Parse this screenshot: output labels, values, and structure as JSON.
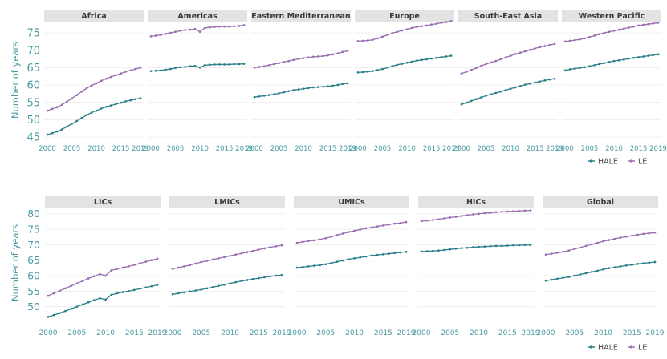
{
  "chart_data": {
    "type": "line",
    "ylabel": "Number of years",
    "colors": {
      "HALE": "#2b7f8a",
      "LE": "#9a6eb0",
      "title_band": "#e3e3e3",
      "tick_text": "#4a9aa0"
    },
    "legend": {
      "placement": "below-right",
      "entries": [
        {
          "key": "HALE",
          "label": "HALE"
        },
        {
          "key": "LE",
          "label": "LE"
        }
      ]
    },
    "x": [
      2000,
      2001,
      2002,
      2003,
      2004,
      2005,
      2006,
      2007,
      2008,
      2009,
      2010,
      2011,
      2012,
      2013,
      2014,
      2015,
      2016,
      2017,
      2018,
      2019
    ],
    "x_tick_labels": [
      "2000",
      "2005",
      "2010",
      "2015",
      "2019"
    ],
    "rows": [
      {
        "ylim": [
          45,
          78
        ],
        "y_ticks": [
          "45",
          "50",
          "55",
          "60",
          "65",
          "70",
          "75"
        ],
        "panels": [
          {
            "title": "Africa",
            "series": [
              {
                "name": "HALE",
                "values": [
                  45.7,
                  46.1,
                  46.6,
                  47.2,
                  48.0,
                  48.8,
                  49.6,
                  50.5,
                  51.3,
                  52.0,
                  52.6,
                  53.2,
                  53.7,
                  54.1,
                  54.5,
                  54.9,
                  55.3,
                  55.6,
                  55.9,
                  56.2
                ]
              },
              {
                "name": "LE",
                "values": [
                  52.6,
                  53.1,
                  53.6,
                  54.3,
                  55.2,
                  56.1,
                  57.1,
                  58.1,
                  59.0,
                  59.8,
                  60.5,
                  61.2,
                  61.8,
                  62.3,
                  62.8,
                  63.3,
                  63.8,
                  64.2,
                  64.6,
                  65.0
                ]
              }
            ]
          },
          {
            "title": "Americas",
            "series": [
              {
                "name": "HALE",
                "values": [
                  64.0,
                  64.1,
                  64.2,
                  64.4,
                  64.6,
                  64.9,
                  65.1,
                  65.2,
                  65.4,
                  65.5,
                  65.0,
                  65.7,
                  65.8,
                  65.9,
                  65.9,
                  65.9,
                  65.9,
                  66.0,
                  66.0,
                  66.1
                ]
              },
              {
                "name": "LE",
                "values": [
                  74.0,
                  74.2,
                  74.4,
                  74.7,
                  75.0,
                  75.3,
                  75.6,
                  75.8,
                  75.9,
                  76.1,
                  75.3,
                  76.4,
                  76.6,
                  76.7,
                  76.8,
                  76.8,
                  76.8,
                  76.9,
                  77.0,
                  77.2
                ]
              }
            ]
          },
          {
            "title": "Eastern Mediterranean",
            "series": [
              {
                "name": "HALE",
                "values": [
                  56.5,
                  56.7,
                  56.9,
                  57.1,
                  57.3,
                  57.6,
                  57.9,
                  58.2,
                  58.5,
                  58.7,
                  58.9,
                  59.1,
                  59.3,
                  59.4,
                  59.5,
                  59.6,
                  59.8,
                  60.0,
                  60.3,
                  60.5
                ]
              },
              {
                "name": "LE",
                "values": [
                  65.0,
                  65.2,
                  65.4,
                  65.7,
                  66.0,
                  66.3,
                  66.6,
                  66.9,
                  67.2,
                  67.5,
                  67.7,
                  67.9,
                  68.1,
                  68.2,
                  68.3,
                  68.5,
                  68.8,
                  69.1,
                  69.5,
                  69.8
                ]
              }
            ]
          },
          {
            "title": "Europe",
            "series": [
              {
                "name": "HALE",
                "values": [
                  63.6,
                  63.7,
                  63.8,
                  64.0,
                  64.3,
                  64.6,
                  65.0,
                  65.4,
                  65.8,
                  66.1,
                  66.4,
                  66.7,
                  67.0,
                  67.2,
                  67.4,
                  67.6,
                  67.8,
                  68.0,
                  68.2,
                  68.4
                ]
              },
              {
                "name": "LE",
                "values": [
                  72.6,
                  72.7,
                  72.8,
                  73.0,
                  73.4,
                  73.9,
                  74.4,
                  74.9,
                  75.3,
                  75.7,
                  76.0,
                  76.4,
                  76.7,
                  76.9,
                  77.1,
                  77.4,
                  77.6,
                  77.9,
                  78.1,
                  78.4
                ]
              }
            ]
          },
          {
            "title": "South-East Asia",
            "series": [
              {
                "name": "HALE",
                "values": [
                  54.4,
                  54.9,
                  55.4,
                  55.9,
                  56.4,
                  56.9,
                  57.3,
                  57.7,
                  58.1,
                  58.5,
                  58.9,
                  59.3,
                  59.7,
                  60.1,
                  60.4,
                  60.7,
                  61.0,
                  61.3,
                  61.6,
                  61.8
                ]
              },
              {
                "name": "LE",
                "values": [
                  63.3,
                  63.8,
                  64.3,
                  64.9,
                  65.5,
                  66.0,
                  66.5,
                  66.9,
                  67.4,
                  67.9,
                  68.4,
                  68.9,
                  69.3,
                  69.7,
                  70.1,
                  70.5,
                  70.9,
                  71.2,
                  71.5,
                  71.8
                ]
              }
            ]
          },
          {
            "title": "Western Pacific",
            "series": [
              {
                "name": "HALE",
                "values": [
                  64.2,
                  64.5,
                  64.7,
                  64.9,
                  65.1,
                  65.4,
                  65.7,
                  66.0,
                  66.3,
                  66.6,
                  66.9,
                  67.1,
                  67.3,
                  67.6,
                  67.8,
                  68.0,
                  68.2,
                  68.4,
                  68.6,
                  68.8
                ]
              },
              {
                "name": "LE",
                "values": [
                  72.5,
                  72.7,
                  72.9,
                  73.1,
                  73.4,
                  73.8,
                  74.2,
                  74.6,
                  75.0,
                  75.3,
                  75.6,
                  75.9,
                  76.2,
                  76.5,
                  76.8,
                  77.1,
                  77.3,
                  77.5,
                  77.7,
                  77.9
                ]
              }
            ]
          }
        ]
      },
      {
        "ylim": [
          45,
          82
        ],
        "y_ticks": [
          "50",
          "55",
          "60",
          "65",
          "70",
          "75",
          "80"
        ],
        "panels": [
          {
            "title": "LICs",
            "series": [
              {
                "name": "HALE",
                "values": [
                  46.7,
                  47.3,
                  47.9,
                  48.6,
                  49.3,
                  50.0,
                  50.7,
                  51.4,
                  52.1,
                  52.7,
                  52.3,
                  53.8,
                  54.3,
                  54.7,
                  55.0,
                  55.4,
                  55.8,
                  56.2,
                  56.6,
                  57.0
                ]
              },
              {
                "name": "LE",
                "values": [
                  53.5,
                  54.3,
                  55.1,
                  55.9,
                  56.7,
                  57.5,
                  58.3,
                  59.1,
                  59.8,
                  60.5,
                  60.0,
                  61.7,
                  62.2,
                  62.6,
                  63.0,
                  63.5,
                  64.0,
                  64.5,
                  65.0,
                  65.5
                ]
              }
            ]
          },
          {
            "title": "LMICs",
            "series": [
              {
                "name": "HALE",
                "values": [
                  54.0,
                  54.3,
                  54.6,
                  54.9,
                  55.2,
                  55.5,
                  55.9,
                  56.3,
                  56.7,
                  57.1,
                  57.5,
                  57.9,
                  58.3,
                  58.6,
                  58.9,
                  59.2,
                  59.5,
                  59.8,
                  60.0,
                  60.2
                ]
              },
              {
                "name": "LE",
                "values": [
                  62.2,
                  62.6,
                  63.0,
                  63.4,
                  63.9,
                  64.4,
                  64.8,
                  65.2,
                  65.6,
                  66.0,
                  66.4,
                  66.8,
                  67.2,
                  67.6,
                  68.0,
                  68.4,
                  68.8,
                  69.2,
                  69.5,
                  69.8
                ]
              }
            ]
          },
          {
            "title": "UMICs",
            "series": [
              {
                "name": "HALE",
                "values": [
                  62.6,
                  62.8,
                  63.0,
                  63.2,
                  63.4,
                  63.7,
                  64.1,
                  64.5,
                  64.9,
                  65.3,
                  65.6,
                  65.9,
                  66.2,
                  66.5,
                  66.7,
                  66.9,
                  67.1,
                  67.3,
                  67.5,
                  67.7
                ]
              },
              {
                "name": "LE",
                "values": [
                  70.6,
                  70.9,
                  71.2,
                  71.4,
                  71.7,
                  72.1,
                  72.6,
                  73.1,
                  73.6,
                  74.1,
                  74.5,
                  74.9,
                  75.3,
                  75.6,
                  75.9,
                  76.2,
                  76.5,
                  76.8,
                  77.0,
                  77.3
                ]
              }
            ]
          },
          {
            "title": "HICs",
            "series": [
              {
                "name": "HALE",
                "values": [
                  67.8,
                  67.9,
                  68.0,
                  68.1,
                  68.3,
                  68.5,
                  68.7,
                  68.9,
                  69.0,
                  69.2,
                  69.3,
                  69.4,
                  69.5,
                  69.6,
                  69.6,
                  69.7,
                  69.8,
                  69.8,
                  69.9,
                  69.9
                ]
              },
              {
                "name": "LE",
                "values": [
                  77.6,
                  77.8,
                  78.0,
                  78.2,
                  78.5,
                  78.8,
                  79.0,
                  79.3,
                  79.5,
                  79.8,
                  80.0,
                  80.2,
                  80.3,
                  80.5,
                  80.6,
                  80.7,
                  80.8,
                  80.9,
                  81.0,
                  81.1
                ]
              }
            ]
          },
          {
            "title": "Global",
            "series": [
              {
                "name": "HALE",
                "values": [
                  58.4,
                  58.7,
                  59.0,
                  59.3,
                  59.6,
                  60.0,
                  60.4,
                  60.8,
                  61.2,
                  61.6,
                  62.0,
                  62.4,
                  62.7,
                  63.0,
                  63.3,
                  63.5,
                  63.8,
                  64.0,
                  64.2,
                  64.4
                ]
              },
              {
                "name": "LE",
                "values": [
                  66.8,
                  67.1,
                  67.4,
                  67.7,
                  68.1,
                  68.6,
                  69.1,
                  69.6,
                  70.1,
                  70.6,
                  71.1,
                  71.5,
                  71.9,
                  72.3,
                  72.6,
                  72.9,
                  73.2,
                  73.5,
                  73.7,
                  73.9
                ]
              }
            ]
          }
        ]
      }
    ]
  }
}
